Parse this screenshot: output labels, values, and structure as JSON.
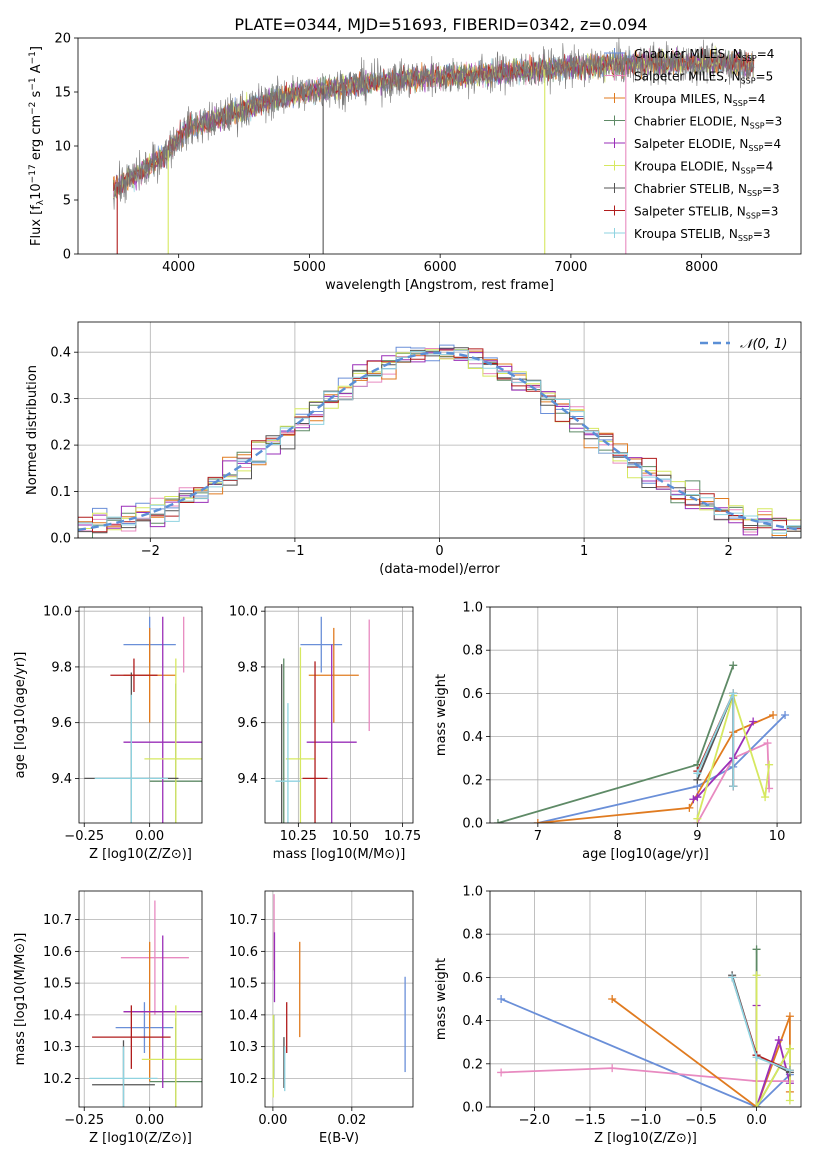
{
  "figure_title": "PLATE=0344, MJD=51693, FIBERID=0342, z=0.094",
  "colors": {
    "Chabrier MILES": "#6a8fd8",
    "Salpeter MILES": "#e88ac0",
    "Kroupa MILES": "#e07b20",
    "Chabrier ELODIE": "#5e8a66",
    "Salpeter ELODIE": "#9a2fb8",
    "Kroupa ELODIE": "#d6e860",
    "Chabrier STELIB": "#555555",
    "Salpeter STELIB": "#b01c1c",
    "Kroupa STELIB": "#8fd3e0"
  },
  "chart_data": [
    {
      "id": "spectrum",
      "type": "line",
      "title": "PLATE=0344, MJD=51693, FIBERID=0342, z=0.094",
      "xlabel": "wavelength [Angstrom, rest frame]",
      "ylabel": "Flux [f_λ 10^-17 erg cm^-2 s^-1 A^-1]",
      "xlim": [
        3230,
        8760
      ],
      "ylim": [
        0,
        20
      ],
      "xticks": [
        "4000",
        "5000",
        "6000",
        "7000",
        "8000"
      ],
      "yticks": [
        "0",
        "5",
        "10",
        "15",
        "20"
      ],
      "legend_position": "right",
      "legend": [
        {
          "base": "Chabrier MILES, N",
          "sub": "SSP",
          "tail": "=4"
        },
        {
          "base": "Salpeter MILES, N",
          "sub": "SSP",
          "tail": "=5"
        },
        {
          "base": "Kroupa MILES, N",
          "sub": "SSP",
          "tail": "=4"
        },
        {
          "base": "Chabrier ELODIE, N",
          "sub": "SSP",
          "tail": "=3"
        },
        {
          "base": "Salpeter ELODIE, N",
          "sub": "SSP",
          "tail": "=4"
        },
        {
          "base": "Kroupa ELODIE, N",
          "sub": "SSP",
          "tail": "=4"
        },
        {
          "base": "Chabrier STELIB, N",
          "sub": "SSP",
          "tail": "=3"
        },
        {
          "base": "Salpeter STELIB, N",
          "sub": "SSP",
          "tail": "=3"
        },
        {
          "base": "Kroupa STELIB, N",
          "sub": "SSP",
          "tail": "=3"
        }
      ],
      "continuum": [
        [
          3500,
          6.0
        ],
        [
          3700,
          7.5
        ],
        [
          3900,
          9.3
        ],
        [
          4000,
          10.8
        ],
        [
          4100,
          11.8
        ],
        [
          4300,
          12.5
        ],
        [
          4500,
          13.4
        ],
        [
          4700,
          14.3
        ],
        [
          4900,
          14.8
        ],
        [
          5100,
          15.3
        ],
        [
          5300,
          15.6
        ],
        [
          5500,
          15.9
        ],
        [
          5700,
          16.2
        ],
        [
          5900,
          16.4
        ],
        [
          6100,
          16.5
        ],
        [
          6300,
          16.6
        ],
        [
          6500,
          16.8
        ],
        [
          6700,
          17.0
        ],
        [
          6900,
          17.2
        ],
        [
          7100,
          17.4
        ],
        [
          7300,
          17.5
        ],
        [
          7500,
          17.6
        ],
        [
          7800,
          17.7
        ],
        [
          8100,
          17.7
        ],
        [
          8400,
          17.6
        ]
      ],
      "observed_range": [
        3500,
        7420
      ],
      "model_range": [
        3500,
        8400
      ],
      "spike_lines": [
        {
          "x": 3530,
          "y": 0,
          "model": "Salpeter STELIB"
        },
        {
          "x": 3920,
          "y": 0,
          "model": "Kroupa ELODIE"
        },
        {
          "x": 5105,
          "y": 0,
          "model": "Chabrier STELIB"
        },
        {
          "x": 6800,
          "y": 0,
          "model": "Kroupa ELODIE"
        },
        {
          "x": 7420,
          "y": 0,
          "model": "Salpeter MILES"
        }
      ]
    },
    {
      "id": "residuals",
      "type": "histogram",
      "xlabel": "(data-model)/error",
      "ylabel": "Normed distribution",
      "xlim": [
        -2.5,
        2.5
      ],
      "ylim": [
        0,
        0.465
      ],
      "xticks": [
        "−2",
        "−1",
        "0",
        "1",
        "2"
      ],
      "yticks": [
        "0.0",
        "0.1",
        "0.2",
        "0.3",
        "0.4"
      ],
      "legend": [
        "𝒩(0, 1)"
      ],
      "legend_position": "top-right",
      "bin_width": 0.1,
      "reference_curve": "normal(0,1)"
    },
    {
      "id": "age_vs_Z",
      "type": "errorbar",
      "xlabel": "Z [log10(Z/Z⊙)]",
      "ylabel": "age [log10(age/yr)]",
      "xlim": [
        -0.27,
        0.2
      ],
      "ylim": [
        9.24,
        10.015
      ],
      "xticks": [
        "−0.25",
        "0.00"
      ],
      "yticks": [
        "9.4",
        "9.6",
        "9.8",
        "10.0"
      ],
      "points": [
        {
          "model": "Chabrier MILES",
          "x": 0.0,
          "xerr": 0.1,
          "y": 9.88,
          "yerr": 0.1
        },
        {
          "model": "Salpeter MILES",
          "x": 0.13,
          "xerr": 0.0,
          "y": 9.88,
          "yerr": 0.1
        },
        {
          "model": "Kroupa MILES",
          "x": 0.0,
          "xerr": 0.1,
          "y": 9.77,
          "yerr": 0.17
        },
        {
          "model": "Chabrier ELODIE",
          "x": 0.1,
          "xerr": 0.1,
          "y": 9.39,
          "yerr": 0.35
        },
        {
          "model": "Salpeter ELODIE",
          "x": 0.05,
          "xerr": 0.15,
          "y": 9.53,
          "yerr": 0.45
        },
        {
          "model": "Kroupa ELODIE",
          "x": 0.1,
          "xerr": 0.12,
          "y": 9.47,
          "yerr": 0.36
        },
        {
          "model": "Chabrier STELIB",
          "x": -0.07,
          "xerr": 0.18,
          "y": 9.4,
          "yerr": 0.38
        },
        {
          "model": "Salpeter STELIB",
          "x": -0.06,
          "xerr": 0.09,
          "y": 9.77,
          "yerr": 0.06
        },
        {
          "model": "Kroupa STELIB",
          "x": -0.07,
          "xerr": 0.14,
          "y": 9.4,
          "yerr": 0.3
        }
      ]
    },
    {
      "id": "age_vs_mass",
      "type": "errorbar",
      "xlabel": "mass [log10(M/M⊙)]",
      "ylabel": "",
      "xlim": [
        10.09,
        10.8
      ],
      "ylim": [
        9.24,
        10.015
      ],
      "xticks": [
        "10.25",
        "10.50",
        "10.75"
      ],
      "yticks": [
        "9.4",
        "9.6",
        "9.8",
        "10.0"
      ],
      "points": [
        {
          "model": "Chabrier MILES",
          "x": 10.36,
          "xerr": 0.1,
          "y": 9.88,
          "yerr": 0.1
        },
        {
          "model": "Salpeter MILES",
          "x": 10.59,
          "xerr": 0.0,
          "y": 9.77,
          "yerr": 0.2
        },
        {
          "model": "Kroupa MILES",
          "x": 10.42,
          "xerr": 0.12,
          "y": 9.77,
          "yerr": 0.17
        },
        {
          "model": "Chabrier ELODIE",
          "x": 10.18,
          "xerr": 0.0,
          "y": 9.53,
          "yerr": 0.3
        },
        {
          "model": "Salpeter ELODIE",
          "x": 10.41,
          "xerr": 0.12,
          "y": 9.53,
          "yerr": 0.35
        },
        {
          "model": "Kroupa ELODIE",
          "x": 10.26,
          "xerr": 0.07,
          "y": 9.47,
          "yerr": 0.4
        },
        {
          "model": "Chabrier STELIB",
          "x": 10.17,
          "xerr": 0.0,
          "y": 9.39,
          "yerr": 0.42
        },
        {
          "model": "Salpeter STELIB",
          "x": 10.33,
          "xerr": 0.06,
          "y": 9.4,
          "yerr": 0.42
        },
        {
          "model": "Kroupa STELIB",
          "x": 10.2,
          "xerr": 0.06,
          "y": 9.39,
          "yerr": 0.28
        }
      ]
    },
    {
      "id": "weight_vs_age",
      "type": "line",
      "xlabel": "age [log10(age/yr)]",
      "ylabel": "mass weight",
      "xlim": [
        6.4,
        10.3
      ],
      "ylim": [
        0,
        1.0
      ],
      "xticks": [
        "7",
        "8",
        "9",
        "10"
      ],
      "yticks": [
        "0.0",
        "0.2",
        "0.4",
        "0.6",
        "0.8",
        "1.0"
      ],
      "series": [
        {
          "model": "Chabrier MILES",
          "x": [
            7.0,
            9.0,
            9.45,
            10.1
          ],
          "y": [
            0.0,
            0.17,
            0.26,
            0.5
          ]
        },
        {
          "model": "Salpeter MILES",
          "x": [
            9.0,
            9.45,
            9.88,
            9.9
          ],
          "y": [
            0.0,
            0.3,
            0.37,
            0.16
          ]
        },
        {
          "model": "Kroupa MILES",
          "x": [
            7.0,
            8.9,
            9.45,
            9.95
          ],
          "y": [
            0.0,
            0.07,
            0.42,
            0.5
          ]
        },
        {
          "model": "Chabrier ELODIE",
          "x": [
            6.5,
            9.0,
            9.45
          ],
          "y": [
            0.0,
            0.27,
            0.73
          ]
        },
        {
          "model": "Salpeter ELODIE",
          "x": [
            8.95,
            9.0,
            9.45,
            9.7
          ],
          "y": [
            0.11,
            0.12,
            0.3,
            0.47
          ]
        },
        {
          "model": "Kroupa ELODIE",
          "x": [
            9.0,
            9.45,
            9.85,
            9.9
          ],
          "y": [
            0.02,
            0.59,
            0.12,
            0.27
          ]
        },
        {
          "model": "Chabrier STELIB",
          "x": [
            9.0,
            9.45,
            9.45
          ],
          "y": [
            0.2,
            0.6,
            0.17
          ]
        },
        {
          "model": "Salpeter STELIB",
          "x": [
            9.0,
            9.45,
            9.45
          ],
          "y": [
            0.24,
            0.6,
            0.17
          ]
        },
        {
          "model": "Kroupa STELIB",
          "x": [
            9.0,
            9.45,
            9.45
          ],
          "y": [
            0.23,
            0.6,
            0.17
          ]
        }
      ]
    },
    {
      "id": "mass_vs_Z",
      "type": "errorbar",
      "xlabel": "Z [log10(Z/Z⊙)]",
      "ylabel": "mass [log10(M/M⊙)]",
      "xlim": [
        -0.27,
        0.2
      ],
      "ylim": [
        10.11,
        10.79
      ],
      "xticks": [
        "−0.25",
        "0.00"
      ],
      "yticks": [
        "10.2",
        "10.3",
        "10.4",
        "10.5",
        "10.6",
        "10.7"
      ],
      "points": [
        {
          "model": "Chabrier MILES",
          "x": -0.02,
          "xerr": 0.11,
          "y": 10.36,
          "yerr": 0.08
        },
        {
          "model": "Salpeter MILES",
          "x": 0.02,
          "xerr": 0.13,
          "y": 10.58,
          "yerr": 0.18
        },
        {
          "model": "Kroupa MILES",
          "x": 0.0,
          "xerr": 0.1,
          "y": 10.41,
          "yerr": 0.22
        },
        {
          "model": "Chabrier ELODIE",
          "x": 0.1,
          "xerr": 0.1,
          "y": 10.19,
          "yerr": 0.2
        },
        {
          "model": "Salpeter ELODIE",
          "x": 0.05,
          "xerr": 0.15,
          "y": 10.41,
          "yerr": 0.24
        },
        {
          "model": "Kroupa ELODIE",
          "x": 0.1,
          "xerr": 0.13,
          "y": 10.26,
          "yerr": 0.17
        },
        {
          "model": "Chabrier STELIB",
          "x": -0.1,
          "xerr": 0.12,
          "y": 10.18,
          "yerr": 0.14
        },
        {
          "model": "Salpeter STELIB",
          "x": -0.07,
          "xerr": 0.15,
          "y": 10.33,
          "yerr": 0.1
        },
        {
          "model": "Kroupa STELIB",
          "x": -0.1,
          "xerr": 0.13,
          "y": 10.2,
          "yerr": 0.1
        }
      ]
    },
    {
      "id": "mass_vs_ebv",
      "type": "errorbar",
      "xlabel": "E(B-V)",
      "ylabel": "",
      "xlim": [
        -0.002,
        0.0355
      ],
      "ylim": [
        10.11,
        10.79
      ],
      "xticks": [
        "0.00",
        "0.02"
      ],
      "yticks": [
        "10.2",
        "10.3",
        "10.4",
        "10.5",
        "10.6",
        "10.7"
      ],
      "points": [
        {
          "model": "Chabrier MILES",
          "x": 0.0335,
          "xerr": 0.0,
          "y": 10.37,
          "yerr": 0.15
        },
        {
          "model": "Salpeter MILES",
          "x": 0.0003,
          "xerr": 0.0,
          "y": 10.66,
          "yerr": 0.12
        },
        {
          "model": "Kroupa MILES",
          "x": 0.0068,
          "xerr": 0.0,
          "y": 10.48,
          "yerr": 0.15
        },
        {
          "model": "Chabrier ELODIE",
          "x": 0.0002,
          "xerr": 0.0,
          "y": 10.3,
          "yerr": 0.1
        },
        {
          "model": "Salpeter ELODIE",
          "x": 0.0004,
          "xerr": 0.0,
          "y": 10.55,
          "yerr": 0.11
        },
        {
          "model": "Kroupa ELODIE",
          "x": 0.0001,
          "xerr": 0.0,
          "y": 10.27,
          "yerr": 0.13
        },
        {
          "model": "Chabrier STELIB",
          "x": 0.0028,
          "xerr": 0.0,
          "y": 10.25,
          "yerr": 0.08
        },
        {
          "model": "Salpeter STELIB",
          "x": 0.0035,
          "xerr": 0.0,
          "y": 10.36,
          "yerr": 0.08
        },
        {
          "model": "Kroupa STELIB",
          "x": 0.003,
          "xerr": 0.0,
          "y": 10.23,
          "yerr": 0.07
        }
      ]
    },
    {
      "id": "weight_vs_Z",
      "type": "line",
      "xlabel": "Z [log10(Z/Z⊙)]",
      "ylabel": "mass weight",
      "xlim": [
        -2.4,
        0.4
      ],
      "ylim": [
        0,
        1.0
      ],
      "xticks": [
        "−2.0",
        "−1.5",
        "−1.0",
        "−0.5",
        "0.0"
      ],
      "yticks": [
        "0.0",
        "0.2",
        "0.4",
        "0.6",
        "0.8",
        "1.0"
      ],
      "series": [
        {
          "model": "Chabrier MILES",
          "x": [
            -2.3,
            0.0,
            0.3
          ],
          "y": [
            0.5,
            0.0,
            0.15
          ]
        },
        {
          "model": "Salpeter MILES",
          "x": [
            -2.3,
            -1.3,
            0.0,
            0.3
          ],
          "y": [
            0.16,
            0.18,
            0.12,
            0.12
          ]
        },
        {
          "model": "Kroupa MILES",
          "x": [
            -1.3,
            0.0,
            0.3,
            0.3
          ],
          "y": [
            0.5,
            0.0,
            0.42,
            0.07
          ]
        },
        {
          "model": "Chabrier ELODIE",
          "x": [
            0.0,
            0.0,
            0.3
          ],
          "y": [
            0.73,
            0.0,
            0.27
          ]
        },
        {
          "model": "Salpeter ELODIE",
          "x": [
            0.0,
            0.0,
            0.2,
            0.3
          ],
          "y": [
            0.47,
            0.0,
            0.31,
            0.11
          ]
        },
        {
          "model": "Kroupa ELODIE",
          "x": [
            0.0,
            0.0,
            0.3,
            0.3
          ],
          "y": [
            0.61,
            0.0,
            0.27,
            0.03
          ]
        },
        {
          "model": "Chabrier STELIB",
          "x": [
            -0.22,
            0.0,
            0.3
          ],
          "y": [
            0.61,
            0.24,
            0.16
          ]
        },
        {
          "model": "Salpeter STELIB",
          "x": [
            -0.22,
            0.0,
            0.3
          ],
          "y": [
            0.6,
            0.24,
            0.17
          ]
        },
        {
          "model": "Kroupa STELIB",
          "x": [
            -0.22,
            0.0,
            0.3
          ],
          "y": [
            0.6,
            0.23,
            0.17
          ]
        }
      ]
    }
  ]
}
